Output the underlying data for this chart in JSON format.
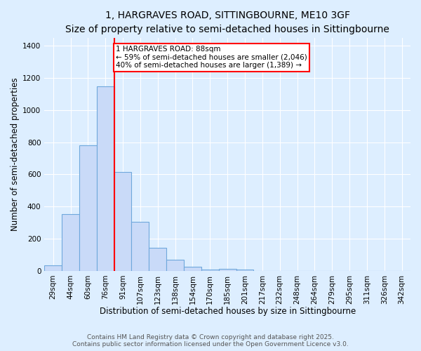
{
  "title": "1, HARGRAVES ROAD, SITTINGBOURNE, ME10 3GF",
  "subtitle": "Size of property relative to semi-detached houses in Sittingbourne",
  "xlabel": "Distribution of semi-detached houses by size in Sittingbourne",
  "ylabel": "Number of semi-detached properties",
  "bins": [
    "29sqm",
    "44sqm",
    "60sqm",
    "76sqm",
    "91sqm",
    "107sqm",
    "123sqm",
    "138sqm",
    "154sqm",
    "170sqm",
    "185sqm",
    "201sqm",
    "217sqm",
    "232sqm",
    "248sqm",
    "264sqm",
    "279sqm",
    "295sqm",
    "311sqm",
    "326sqm",
    "342sqm"
  ],
  "values": [
    35,
    355,
    780,
    1150,
    615,
    305,
    145,
    70,
    25,
    10,
    12,
    10,
    0,
    0,
    0,
    0,
    0,
    0,
    0,
    0,
    0
  ],
  "bar_color": "#c9daf8",
  "bar_edge_color": "#6fa8dc",
  "marker_bin_index": 3,
  "marker_label": "1 HARGRAVES ROAD: 88sqm",
  "marker_pct_smaller": "59% of semi-detached houses are smaller (2,046)",
  "marker_pct_larger": "40% of semi-detached houses are larger (1,389)",
  "marker_color": "red",
  "ylim": [
    0,
    1450
  ],
  "yticks": [
    0,
    200,
    400,
    600,
    800,
    1000,
    1200,
    1400
  ],
  "footnote1": "Contains HM Land Registry data © Crown copyright and database right 2025.",
  "footnote2": "Contains public sector information licensed under the Open Government Licence v3.0.",
  "bg_color": "#ddeeff",
  "grid_color": "#ffffff",
  "title_fontsize": 10,
  "axis_label_fontsize": 8.5,
  "tick_fontsize": 7.5,
  "annotation_fontsize": 7.5,
  "footnote_fontsize": 6.5
}
